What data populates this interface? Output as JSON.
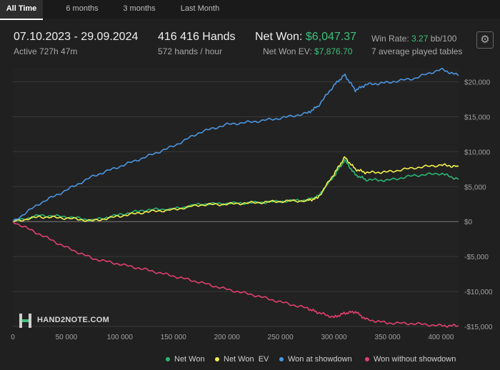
{
  "tabs": [
    {
      "label": "All Time",
      "active": true
    },
    {
      "label": "6 months",
      "active": false
    },
    {
      "label": "3 months",
      "active": false
    },
    {
      "label": "Last Month",
      "active": false
    }
  ],
  "stats": {
    "date_range": "07.10.2023 - 29.09.2024",
    "active_time": "Active 727h 47m",
    "hands": "416 416 Hands",
    "hands_per_hour": "572 hands / hour",
    "net_won_label": "Net Won: ",
    "net_won_value": "$6,047.37",
    "net_won_ev_label": "Net Won  EV: ",
    "net_won_ev_value": "$7,876.70",
    "win_rate_label": "Win Rate: ",
    "win_rate_value": "3.27",
    "win_rate_unit": " bb/100",
    "tables": "7 average played tables"
  },
  "settings_icon": "gear-icon",
  "logo": {
    "text": "HAND2NOTE.COM"
  },
  "colors": {
    "net_won": "#2bb673",
    "net_won_ev": "#f2f04b",
    "won_at_showdown": "#4b95e0",
    "won_without_showdown": "#e0406f",
    "accent_green": "#3ec07a"
  },
  "chart_data": {
    "type": "line",
    "xlim": [
      0,
      416416
    ],
    "ylim": [
      -15000,
      22000
    ],
    "x_ticks": [
      0,
      50000,
      100000,
      150000,
      200000,
      250000,
      300000,
      350000,
      400000
    ],
    "x_tick_labels": [
      "0",
      "50 000",
      "100 000",
      "150 000",
      "200 000",
      "250 000",
      "300 000",
      "350 000",
      "400 000"
    ],
    "y_ticks": [
      -15000,
      -10000,
      -5000,
      0,
      5000,
      10000,
      15000,
      20000
    ],
    "y_tick_labels": [
      "-$15,000",
      "-$10,000",
      "-$5,000",
      "$0",
      "$5,000",
      "$10,000",
      "$15,000",
      "$20,000"
    ],
    "grid": true,
    "legend_position": "bottom",
    "x": [
      0,
      25000,
      50000,
      75000,
      100000,
      125000,
      150000,
      175000,
      200000,
      225000,
      250000,
      275000,
      285000,
      300000,
      310000,
      320000,
      330000,
      350000,
      375000,
      400000,
      416416
    ],
    "series": [
      {
        "name": "Net Won",
        "color": "#2bb673",
        "values": [
          0,
          900,
          700,
          200,
          1000,
          1700,
          1800,
          2500,
          2600,
          2700,
          2900,
          3100,
          3600,
          6500,
          8800,
          6700,
          6000,
          5900,
          6600,
          6900,
          6047
        ]
      },
      {
        "name": "Net Won  EV",
        "color": "#f2f04b",
        "values": [
          0,
          700,
          500,
          100,
          800,
          1400,
          1700,
          2400,
          2500,
          2700,
          2900,
          3000,
          3400,
          6800,
          9200,
          7500,
          7000,
          7100,
          7700,
          8100,
          7877
        ]
      },
      {
        "name": "Won at showdown",
        "color": "#4b95e0",
        "values": [
          0,
          2600,
          4500,
          6500,
          7900,
          9300,
          10800,
          12800,
          13900,
          14300,
          14800,
          15500,
          16500,
          19500,
          21000,
          18800,
          19600,
          19900,
          20500,
          21800,
          20900
        ]
      },
      {
        "name": "Won without showdown",
        "color": "#e0406f",
        "values": [
          0,
          -1800,
          -3700,
          -5300,
          -6100,
          -6900,
          -7800,
          -8700,
          -9700,
          -10500,
          -11500,
          -12400,
          -13000,
          -13700,
          -13100,
          -12900,
          -14000,
          -14500,
          -14600,
          -14900,
          -14900
        ]
      }
    ]
  }
}
